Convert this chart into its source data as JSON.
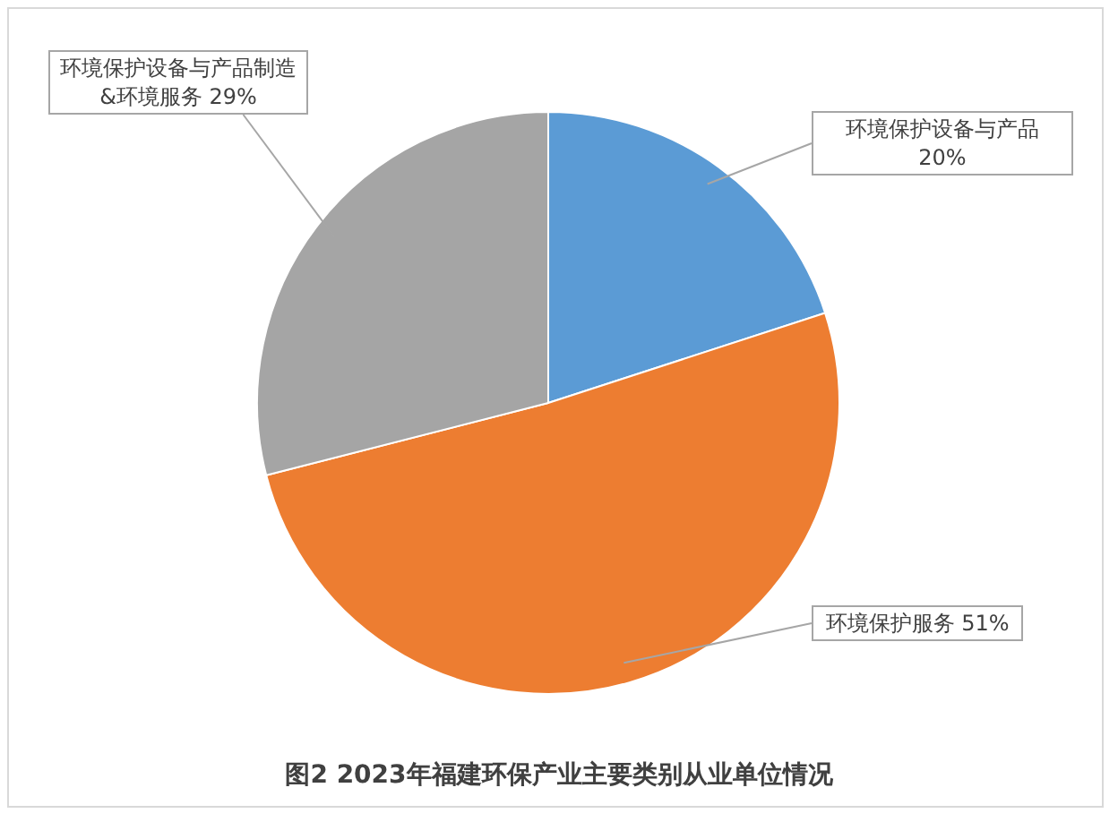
{
  "chart_data": {
    "type": "pie",
    "title": "图2  2023年福建环保产业主要类别从业单位情况",
    "categories": [
      "环境保护设备与产品",
      "环境保护服务",
      "环境保护设备与产品制造&环境服务"
    ],
    "values": [
      20,
      51,
      29
    ],
    "value_labels": [
      "20%",
      "51%",
      "29%"
    ],
    "colors": [
      "#5b9bd5",
      "#ed7d31",
      "#a5a5a5"
    ],
    "legend": false
  }
}
